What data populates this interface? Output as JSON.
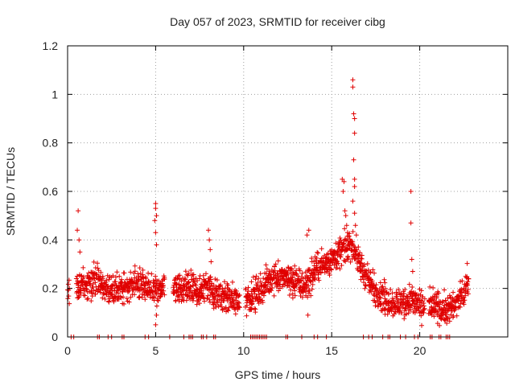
{
  "chart_data": {
    "type": "scatter",
    "title": "Day 057 of 2023, SRMTID for receiver cibg",
    "xlabel": "GPS time / hours",
    "ylabel": "SRMTID / TECUs",
    "xlim": [
      0,
      25
    ],
    "ylim": [
      0,
      1.2
    ],
    "grid": true,
    "marker": "plus",
    "x_ticks": [
      0,
      5,
      10,
      15,
      20
    ],
    "y_ticks": [
      0,
      0.2,
      0.4,
      0.6,
      0.8,
      1,
      1.2
    ],
    "x_tick_labels": [
      "0",
      "5",
      "10",
      "15",
      "20"
    ],
    "y_tick_labels": [
      "0",
      "0.2",
      "0.4",
      "0.6",
      "0.8",
      "1",
      "1.2"
    ],
    "series": [
      {
        "name": "SRMTID",
        "color": "#e00000",
        "profile": [
          [
            0.0,
            0.18
          ],
          [
            0.5,
            0.2
          ],
          [
            1.0,
            0.22
          ],
          [
            1.5,
            0.24
          ],
          [
            2.0,
            0.21
          ],
          [
            2.5,
            0.19
          ],
          [
            3.0,
            0.2
          ],
          [
            3.5,
            0.21
          ],
          [
            4.0,
            0.22
          ],
          [
            4.5,
            0.2
          ],
          [
            5.0,
            0.19
          ],
          [
            5.5,
            0.21
          ],
          [
            6.0,
            0.2
          ],
          [
            6.5,
            0.19
          ],
          [
            7.0,
            0.2
          ],
          [
            7.5,
            0.19
          ],
          [
            8.0,
            0.21
          ],
          [
            8.5,
            0.17
          ],
          [
            9.0,
            0.16
          ],
          [
            9.5,
            0.15
          ],
          [
            10.0,
            0.15
          ],
          [
            10.5,
            0.17
          ],
          [
            11.0,
            0.2
          ],
          [
            11.5,
            0.24
          ],
          [
            12.0,
            0.25
          ],
          [
            12.5,
            0.24
          ],
          [
            13.0,
            0.22
          ],
          [
            13.5,
            0.21
          ],
          [
            14.0,
            0.27
          ],
          [
            14.5,
            0.3
          ],
          [
            15.0,
            0.32
          ],
          [
            15.5,
            0.35
          ],
          [
            16.0,
            0.38
          ],
          [
            16.3,
            0.36
          ],
          [
            16.6,
            0.3
          ],
          [
            17.0,
            0.24
          ],
          [
            17.5,
            0.19
          ],
          [
            18.0,
            0.16
          ],
          [
            18.5,
            0.14
          ],
          [
            19.0,
            0.14
          ],
          [
            19.5,
            0.16
          ],
          [
            20.0,
            0.13
          ],
          [
            20.5,
            0.13
          ],
          [
            21.0,
            0.12
          ],
          [
            21.5,
            0.11
          ],
          [
            22.0,
            0.13
          ],
          [
            22.5,
            0.18
          ],
          [
            22.8,
            0.25
          ]
        ],
        "spread": 0.06,
        "gaps": [
          [
            0.1,
            0.5
          ],
          [
            5.5,
            6.0
          ],
          [
            9.8,
            10.1
          ],
          [
            20.3,
            20.5
          ]
        ],
        "highlights": [
          [
            0.6,
            0.52
          ],
          [
            0.55,
            0.44
          ],
          [
            0.65,
            0.4
          ],
          [
            0.7,
            0.35
          ],
          [
            5.0,
            0.55
          ],
          [
            5.0,
            0.53
          ],
          [
            5.05,
            0.5
          ],
          [
            4.95,
            0.48
          ],
          [
            5.0,
            0.43
          ],
          [
            5.05,
            0.38
          ],
          [
            5.0,
            0.05
          ],
          [
            5.05,
            0.09
          ],
          [
            8.0,
            0.44
          ],
          [
            8.05,
            0.4
          ],
          [
            8.1,
            0.36
          ],
          [
            8.15,
            0.31
          ],
          [
            13.7,
            0.44
          ],
          [
            13.6,
            0.42
          ],
          [
            13.65,
            0.09
          ],
          [
            15.6,
            0.65
          ],
          [
            15.7,
            0.64
          ],
          [
            15.65,
            0.6
          ],
          [
            15.75,
            0.52
          ],
          [
            15.8,
            0.5
          ],
          [
            15.85,
            0.46
          ],
          [
            15.9,
            0.43
          ],
          [
            16.2,
            1.06
          ],
          [
            16.2,
            1.03
          ],
          [
            16.25,
            0.92
          ],
          [
            16.3,
            0.9
          ],
          [
            16.3,
            0.84
          ],
          [
            16.25,
            0.73
          ],
          [
            16.3,
            0.65
          ],
          [
            16.3,
            0.62
          ],
          [
            16.2,
            0.56
          ],
          [
            16.3,
            0.51
          ],
          [
            16.35,
            0.46
          ],
          [
            16.4,
            0.42
          ],
          [
            19.5,
            0.6
          ],
          [
            19.5,
            0.47
          ],
          [
            19.55,
            0.32
          ],
          [
            19.6,
            0.27
          ]
        ],
        "zero_points": [
          0.2,
          0.35,
          1.7,
          1.8,
          2.3,
          2.5,
          3.1,
          3.2,
          4.4,
          4.6,
          5.8,
          6.6,
          6.9,
          7.0,
          7.1,
          7.6,
          7.7,
          7.9,
          8.3,
          8.4,
          10.4,
          10.5,
          10.6,
          10.7,
          10.8,
          10.9,
          11.0,
          11.1,
          11.2,
          11.3,
          12.4,
          12.5,
          13.3,
          14.0,
          14.2,
          14.7,
          16.8,
          17.1,
          17.3,
          17.9,
          18.2,
          18.3,
          18.9,
          19.2,
          19.7,
          19.9,
          20.6,
          20.7,
          21.1,
          21.2,
          21.5,
          21.6,
          21.7
        ]
      }
    ]
  }
}
